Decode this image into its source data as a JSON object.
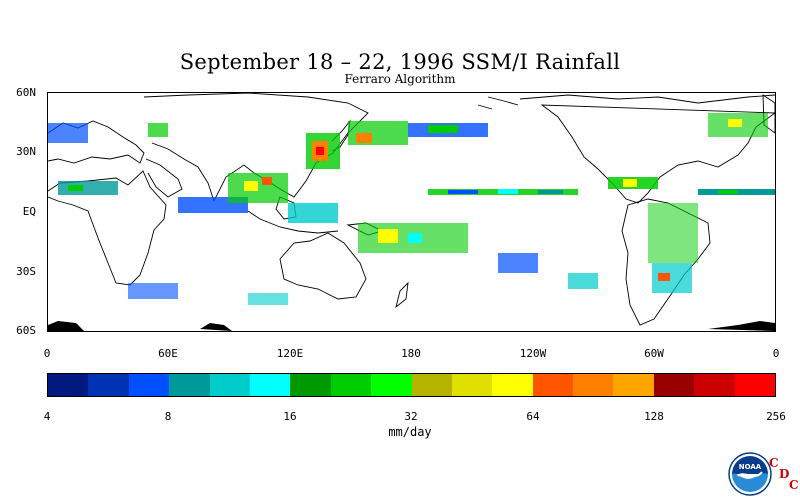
{
  "title": "September 18 – 22, 1996 SSM/I Rainfall",
  "subtitle": "Ferraro Algorithm",
  "lat_labels": [
    "60N",
    "30N",
    "EQ",
    "30S",
    "60S"
  ],
  "lon_labels": [
    "0",
    "60E",
    "120E",
    "180",
    "120W",
    "60W",
    "0"
  ],
  "colorbar": {
    "labels": [
      "4",
      "8",
      "16",
      "32",
      "64",
      "128",
      "256"
    ],
    "units": "mm/day",
    "colors": [
      "#001a80",
      "#0033b3",
      "#0050ff",
      "#009999",
      "#00cccc",
      "#00ffff",
      "#009900",
      "#00cc00",
      "#00ff00",
      "#b3b300",
      "#e0e000",
      "#ffff00",
      "#ff5500",
      "#ff8000",
      "#ffa500",
      "#990000",
      "#cc0000",
      "#ff0000"
    ]
  },
  "logo": {
    "icon": "noaa-logo",
    "text": "NOAA",
    "cdc": [
      "C",
      "D",
      "C"
    ]
  }
}
